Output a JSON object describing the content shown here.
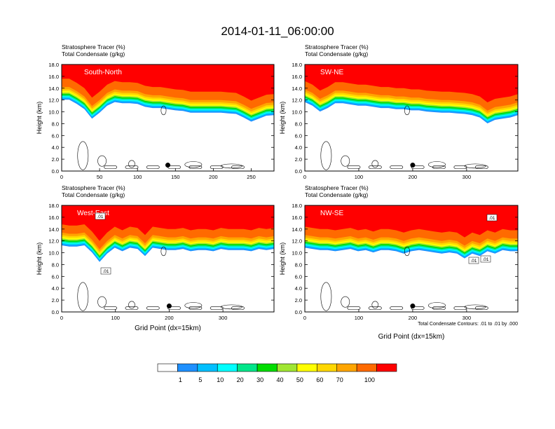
{
  "figure": {
    "title": "2014-01-11_06:00:00",
    "colorbar": {
      "labels": [
        "1",
        "5",
        "10",
        "20",
        "30",
        "40",
        "50",
        "60",
        "70",
        "100"
      ],
      "colors": [
        "#ffffff",
        "#1e90ff",
        "#00bfff",
        "#00ffff",
        "#00e68a",
        "#00dd00",
        "#a0e632",
        "#ffff00",
        "#ffd700",
        "#ffa500",
        "#ff6a00",
        "#ff0000"
      ]
    },
    "contour_note": "Total Condensate Contours: .01 to .01 by .000",
    "contour_labels": [
      ".01",
      ".01",
      ".01",
      ".01",
      ".01"
    ]
  },
  "chart_data": [
    {
      "type": "heatmap",
      "panel": "top-left",
      "legend_lines": [
        "Stratosphere Tracer   (%)",
        "Total Condensate   (g/kg)"
      ],
      "cross_section": "South-North",
      "ylabel": "Height (km)",
      "xlabel": "",
      "xlim": [
        0,
        280
      ],
      "ylim": [
        0,
        18
      ],
      "xticks": [
        "0",
        "50",
        "100",
        "150",
        "200",
        "250"
      ],
      "yticks": [
        "0.0",
        "2.0",
        "4.0",
        "6.0",
        "8.0",
        "10.0",
        "12.0",
        "14.0",
        "16.0",
        "18.0"
      ],
      "tracer_top_km": [
        16.2,
        16.2,
        15.5,
        14.6,
        13.0,
        14.0,
        15.2,
        15.8,
        15.6,
        15.6,
        15.5,
        15.0,
        14.8,
        14.8,
        14.6,
        14.4,
        14.3,
        14.0,
        14.0,
        14.0,
        14.0,
        14.0,
        13.9,
        13.8,
        13.2,
        12.5,
        13.0,
        13.5,
        13.6
      ],
      "marker": {
        "x": 140,
        "y": 1.0
      }
    },
    {
      "type": "heatmap",
      "panel": "top-right",
      "legend_lines": [
        "Stratosphere Tracer   (%)",
        "Total Condensate   (g/kg)"
      ],
      "cross_section": "SW-NE",
      "ylabel": "Height (km)",
      "xlabel": "",
      "xlim": [
        0,
        395
      ],
      "ylim": [
        0,
        18
      ],
      "xticks": [
        "0",
        "100",
        "200",
        "300"
      ],
      "yticks": [
        "0.0",
        "2.0",
        "4.0",
        "6.0",
        "8.0",
        "10.0",
        "12.0",
        "14.0",
        "16.0",
        "18.0"
      ],
      "tracer_top_km": [
        15.8,
        15.2,
        14.2,
        14.8,
        15.6,
        15.6,
        15.4,
        15.2,
        15.2,
        15.0,
        14.8,
        14.8,
        14.6,
        14.6,
        14.4,
        14.4,
        14.2,
        14.1,
        14.0,
        14.0,
        13.9,
        13.8,
        13.6,
        13.2,
        12.2,
        12.8,
        13.0,
        13.2,
        13.6
      ],
      "marker": {
        "x": 200,
        "y": 1.0
      }
    },
    {
      "type": "heatmap",
      "panel": "bottom-left",
      "legend_lines": [
        "Stratosphere Tracer   (%)",
        "Total Condensate   (g/kg)"
      ],
      "cross_section": "West-East",
      "ylabel": "Height (km)",
      "xlabel": "Grid Point (dx=15km)",
      "xlim": [
        0,
        395
      ],
      "ylim": [
        0,
        18
      ],
      "xticks": [
        "0",
        "100",
        "200",
        "300"
      ],
      "yticks": [
        "0.0",
        "2.0",
        "4.0",
        "6.0",
        "8.0",
        "10.0",
        "12.0",
        "14.0",
        "16.0",
        "18.0"
      ],
      "tracer_top_km": [
        15.4,
        15.2,
        15.2,
        15.4,
        14.2,
        12.6,
        14.0,
        15.0,
        14.4,
        15.0,
        14.8,
        13.6,
        15.0,
        14.8,
        14.6,
        14.6,
        14.8,
        14.4,
        14.6,
        14.6,
        14.4,
        14.8,
        14.6,
        14.6,
        14.6,
        14.4,
        14.8,
        14.6,
        14.8
      ],
      "marker": {
        "x": 200,
        "y": 1.0
      }
    },
    {
      "type": "heatmap",
      "panel": "bottom-right",
      "legend_lines": [
        "Stratosphere Tracer   (%)",
        "Total Condensate   (g/kg)"
      ],
      "cross_section": "NW-SE",
      "ylabel": "Height (km)",
      "xlabel": "Grid Point (dx=15km)",
      "xlim": [
        0,
        395
      ],
      "ylim": [
        0,
        18
      ],
      "xticks": [
        "0",
        "100",
        "200",
        "300"
      ],
      "yticks": [
        "0.0",
        "2.0",
        "4.0",
        "6.0",
        "8.0",
        "10.0",
        "12.0",
        "14.0",
        "16.0",
        "18.0"
      ],
      "tracer_top_km": [
        15.0,
        14.8,
        14.6,
        14.6,
        14.4,
        14.6,
        14.8,
        14.4,
        14.6,
        14.2,
        14.6,
        14.6,
        14.4,
        14.0,
        14.4,
        14.6,
        14.4,
        14.2,
        14.0,
        14.2,
        14.0,
        13.2,
        14.0,
        13.6,
        14.4,
        14.0,
        14.6,
        14.4,
        14.4
      ],
      "marker": {
        "x": 200,
        "y": 1.0
      }
    }
  ]
}
